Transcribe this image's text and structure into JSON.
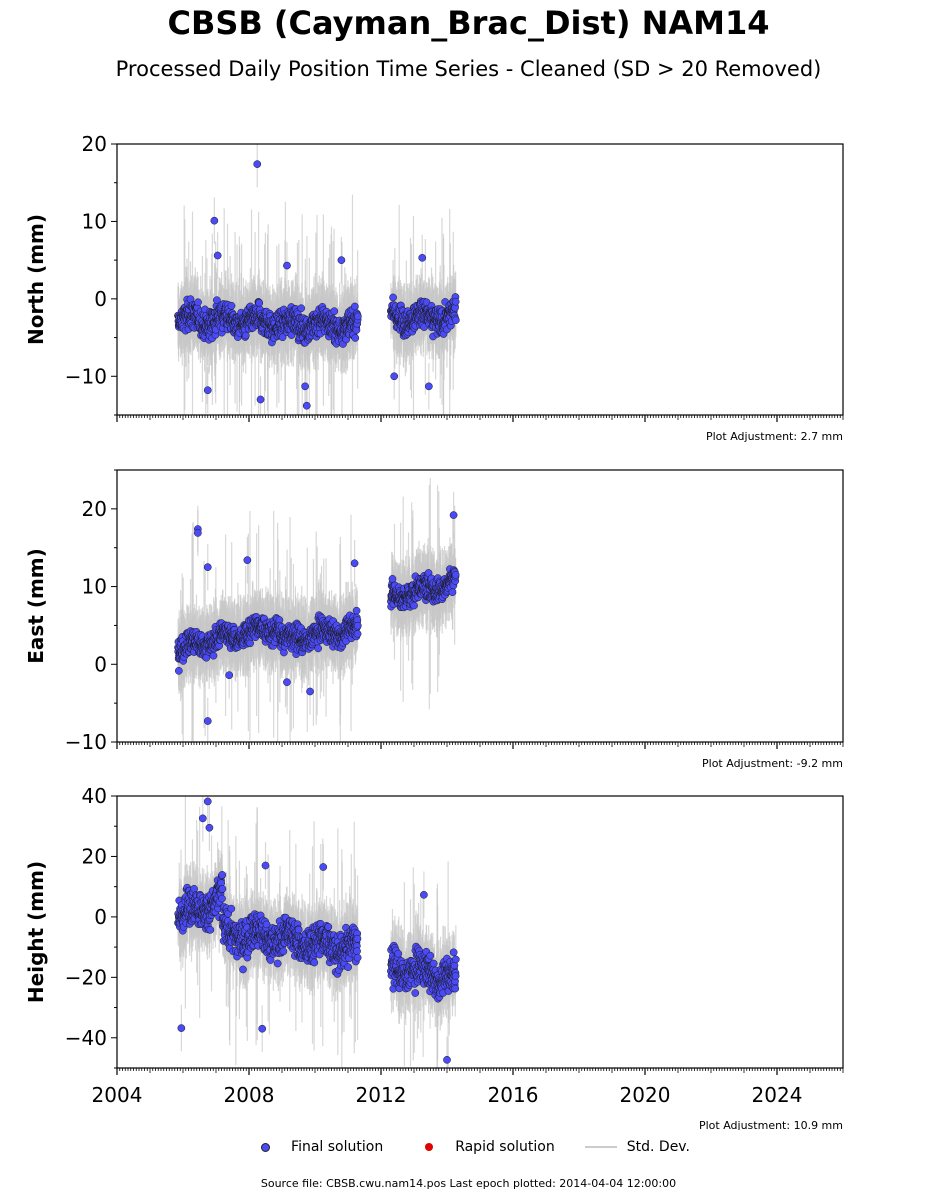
{
  "title": "CBSB (Cayman_Brac_Dist) NAM14",
  "subtitle": "Processed Daily Position Time Series - Cleaned (SD > 20 Removed)",
  "legend": {
    "final": "Final solution",
    "rapid": "Rapid solution",
    "stddev": "Std. Dev."
  },
  "source": "Source file: CBSB.cwu.nam14.pos  Last epoch plotted: 2014-04-04 12:00:00",
  "colors": {
    "final": "#4a4af7",
    "rapid": "#e00000",
    "stddev": "#c8c8c8"
  },
  "chart_data": [
    {
      "type": "scatter",
      "ylabel": "North (mm)",
      "adjustment": "Plot Adjustment: 2.7 mm",
      "xlim": [
        2004,
        2026
      ],
      "ylim": [
        -15,
        20
      ],
      "yticks": [
        -10,
        0,
        10,
        20
      ],
      "ytick_labels": [
        "−10",
        "0",
        "10",
        "20"
      ],
      "segments": [
        {
          "start": 2005.85,
          "end": 2011.3,
          "level": -2.5,
          "trend": -0.4,
          "noise": 2.0
        },
        {
          "start": 2012.3,
          "end": 2014.27,
          "level": -2.3,
          "trend": 0.0,
          "noise": 2.0
        }
      ],
      "outliers": [
        [
          2008.25,
          17.4
        ],
        [
          2006.95,
          10.1
        ],
        [
          2007.05,
          5.6
        ],
        [
          2009.15,
          4.3
        ],
        [
          2010.8,
          5.0
        ],
        [
          2013.25,
          5.3
        ],
        [
          2008.35,
          -13.0
        ],
        [
          2009.75,
          -13.8
        ],
        [
          2006.75,
          -11.8
        ],
        [
          2013.45,
          -11.3
        ],
        [
          2012.4,
          -10.0
        ],
        [
          2009.7,
          -11.3
        ]
      ]
    },
    {
      "type": "scatter",
      "ylabel": "East (mm)",
      "adjustment": "Plot Adjustment: -9.2 mm",
      "xlim": [
        2004,
        2026
      ],
      "ylim": [
        -10,
        25
      ],
      "yticks": [
        -10,
        0,
        10,
        20
      ],
      "ytick_labels": [
        "−10",
        "0",
        "10",
        "20"
      ],
      "segments": [
        {
          "start": 2005.85,
          "end": 2008.95,
          "level": 2.0,
          "trend": 2.0,
          "noise": 1.8
        },
        {
          "start": 2008.95,
          "end": 2011.3,
          "level": 3.0,
          "trend": 1.4,
          "noise": 1.8
        },
        {
          "start": 2012.3,
          "end": 2014.27,
          "level": 8.5,
          "trend": 2.2,
          "noise": 1.8
        }
      ],
      "outliers": [
        [
          2006.45,
          17.4
        ],
        [
          2006.45,
          16.9
        ],
        [
          2006.75,
          12.5
        ],
        [
          2007.95,
          13.4
        ],
        [
          2006.75,
          -7.3
        ],
        [
          2009.85,
          -3.5
        ],
        [
          2009.15,
          -2.3
        ],
        [
          2014.2,
          19.2
        ],
        [
          2011.2,
          13.0
        ],
        [
          2007.4,
          -1.4
        ]
      ]
    },
    {
      "type": "scatter",
      "ylabel": "Height (mm)",
      "adjustment": "Plot Adjustment: 10.9 mm",
      "xlim": [
        2004,
        2026
      ],
      "ylim": [
        -50,
        40
      ],
      "yticks": [
        -40,
        -20,
        0,
        20,
        40
      ],
      "ytick_labels": [
        "−40",
        "−20",
        "0",
        "20",
        "40"
      ],
      "xticks": [
        2004,
        2008,
        2012,
        2016,
        2020,
        2024
      ],
      "xtick_labels": [
        "2004",
        "2008",
        "2012",
        "2016",
        "2020",
        "2024"
      ],
      "segments": [
        {
          "start": 2005.85,
          "end": 2007.2,
          "level": 0.0,
          "trend": 10.0,
          "noise": 7.0
        },
        {
          "start": 2007.2,
          "end": 2011.3,
          "level": -5.0,
          "trend": -2.5,
          "noise": 7.0
        },
        {
          "start": 2012.3,
          "end": 2014.27,
          "level": -17.0,
          "trend": -3.0,
          "noise": 6.5
        }
      ],
      "outliers": [
        [
          2006.75,
          38.2
        ],
        [
          2006.6,
          32.6
        ],
        [
          2006.8,
          29.5
        ],
        [
          2005.95,
          -36.8
        ],
        [
          2014.0,
          -47.3
        ],
        [
          2008.5,
          17.0
        ],
        [
          2010.25,
          16.5
        ],
        [
          2013.3,
          7.3
        ],
        [
          2008.4,
          -37.0
        ]
      ]
    }
  ]
}
